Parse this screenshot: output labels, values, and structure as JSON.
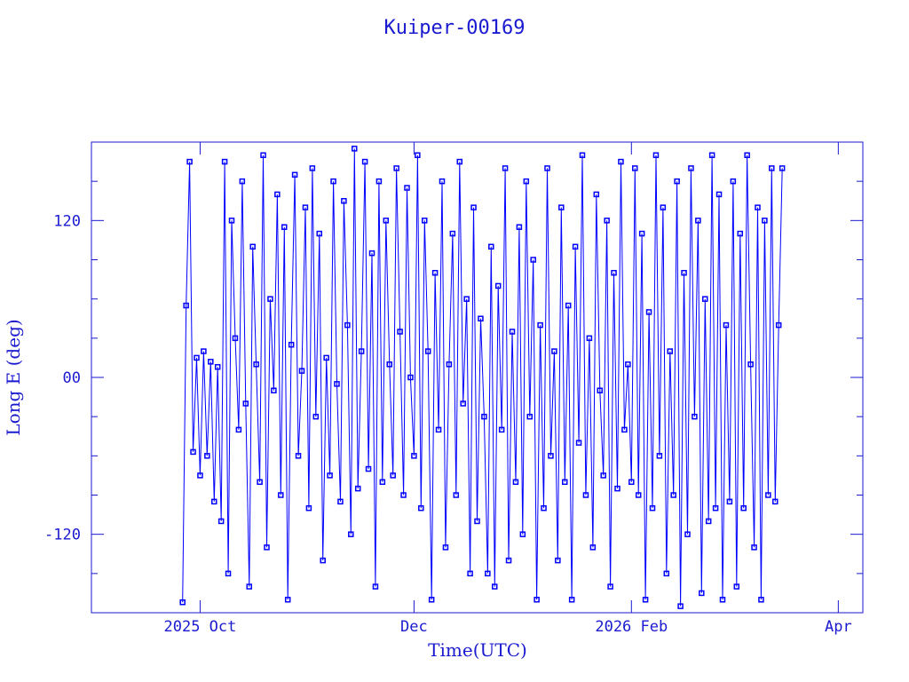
{
  "chart_data": {
    "type": "line",
    "title": "Kuiper-00169",
    "xlabel": "Time(UTC)",
    "ylabel": "Long E (deg)",
    "xlim": [
      "2025-08-31",
      "2026-04-08"
    ],
    "ylim": [
      -180,
      180
    ],
    "x_ticks": [
      {
        "date": "2025-10-01",
        "label": "2025 Oct"
      },
      {
        "date": "2025-12-01",
        "label": "Dec"
      },
      {
        "date": "2026-02-01",
        "label": "2026 Feb"
      },
      {
        "date": "2026-04-01",
        "label": "Apr"
      }
    ],
    "y_ticks": [
      {
        "value": 120,
        "label": "120"
      },
      {
        "value": 0,
        "label": "00"
      },
      {
        "value": -120,
        "label": "-120"
      }
    ],
    "y_minor_step": 30,
    "grid": false,
    "markers": "square",
    "colors": {
      "data": "#0000ff",
      "axes": "#1a1ad0"
    },
    "series": [
      {
        "start_date": "2025-09-26",
        "values": [
          -172,
          55,
          165,
          -57,
          15,
          -75,
          20,
          -60,
          12,
          -95,
          8,
          -110,
          165,
          -150,
          120,
          30,
          -40,
          150,
          -20,
          -160,
          100,
          10,
          -80,
          170,
          -130,
          60,
          -10,
          140,
          -90,
          115,
          -170,
          25,
          155,
          -60,
          5,
          130,
          -100,
          160,
          -30,
          110,
          -140,
          15,
          -75,
          150,
          -5,
          -95,
          135,
          40,
          -120,
          175,
          -85,
          20,
          165,
          -70,
          95,
          -160,
          150,
          -80,
          120,
          10,
          -75,
          160,
          35,
          -90,
          145,
          0,
          -60,
          170,
          -100,
          120,
          20,
          -170,
          80,
          -40,
          150,
          -130,
          10,
          110,
          -90,
          165,
          -20,
          60,
          -150,
          130,
          -110,
          45,
          -30,
          -150,
          100,
          -160,
          70,
          -40,
          160,
          -140,
          35,
          -80,
          115,
          -120,
          150,
          -30,
          90,
          -170,
          40,
          -100,
          160,
          -60,
          20,
          -140,
          130,
          -80,
          55,
          -170,
          100,
          -50,
          170,
          -90,
          30,
          -130,
          140,
          -10,
          -75,
          120,
          -160,
          80,
          -85,
          165,
          -40,
          10,
          -80,
          160,
          -90,
          110,
          -170,
          50,
          -100,
          170,
          -60,
          130,
          -150,
          20,
          -90,
          150,
          -175,
          80,
          -120,
          160,
          -30,
          120,
          -165,
          60,
          -110,
          170,
          -100,
          140,
          -170,
          40,
          -95,
          150,
          -160,
          110,
          -100,
          170,
          10,
          -130,
          130,
          -170,
          120,
          -90,
          160,
          -95,
          40,
          160
        ]
      }
    ]
  }
}
